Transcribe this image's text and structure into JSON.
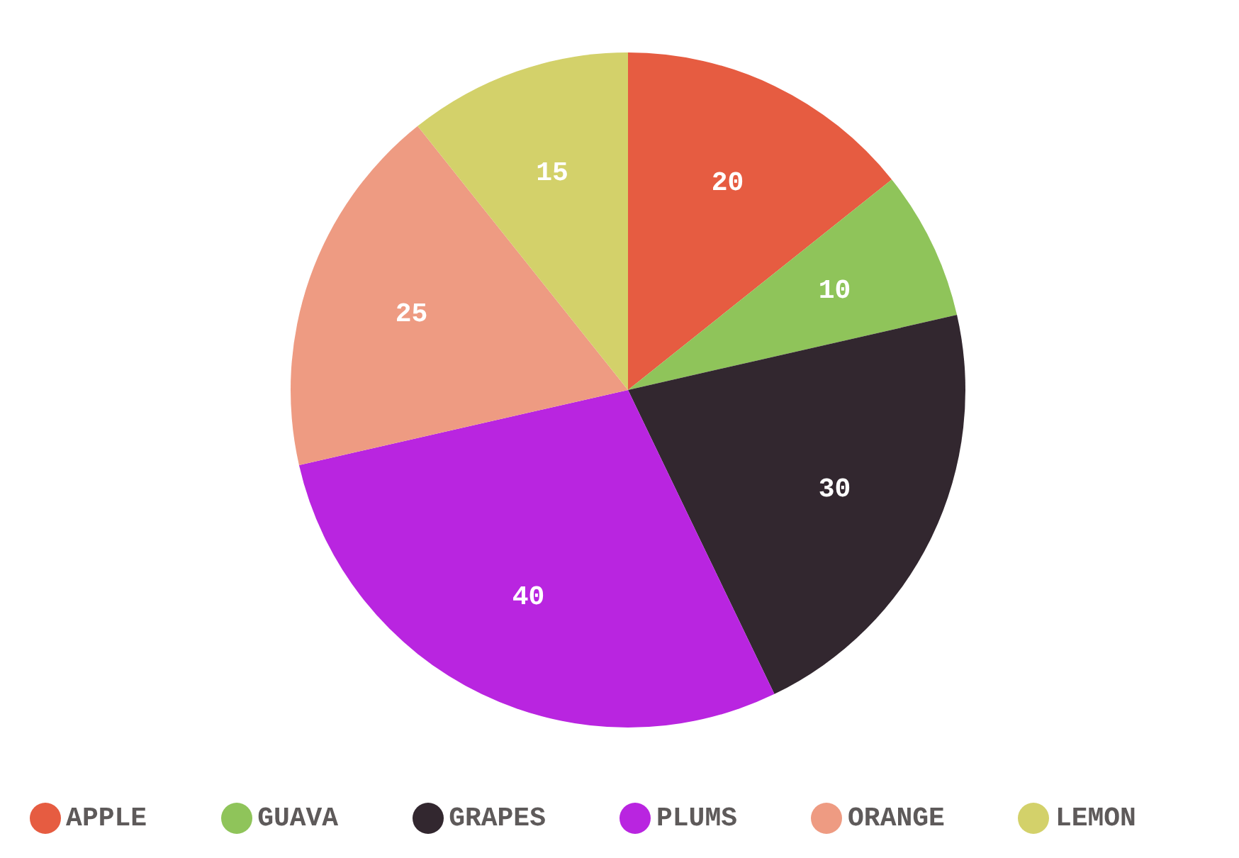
{
  "chart_data": {
    "type": "pie",
    "categories": [
      "APPLE",
      "GUAVA",
      "GRAPES",
      "PLUMS",
      "ORANGE",
      "LEMON"
    ],
    "values": [
      20,
      10,
      30,
      40,
      25,
      15
    ],
    "colors": [
      "#e65c41",
      "#8fc45a",
      "#32272f",
      "#b925e0",
      "#ee9b82",
      "#d3d16a"
    ],
    "data_labels": true,
    "legend": "bottom"
  }
}
